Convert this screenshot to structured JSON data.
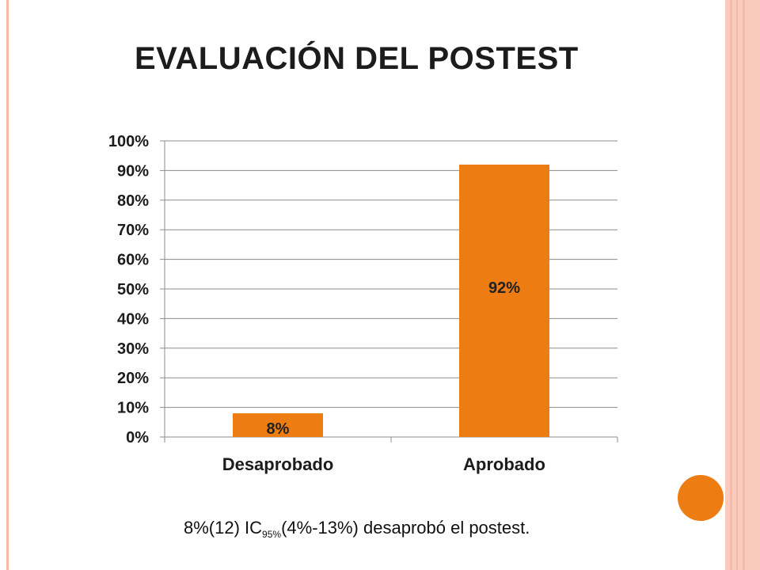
{
  "slide": {
    "title": "EVALUACIÓN DEL POSTEST",
    "caption": {
      "prefix": "8%(12) IC",
      "subscript": "95%",
      "suffix": "(4%-13%) desaprobó el postest."
    },
    "colors": {
      "accent": "#ed7d12",
      "frame": "#f9cbbd",
      "frame_stripe": "#f4b9a8"
    }
  },
  "chart_data": {
    "type": "bar",
    "title": "",
    "xlabel": "",
    "ylabel": "",
    "categories": [
      "Desaprobado",
      "Aprobado"
    ],
    "values": [
      8,
      92
    ],
    "data_labels": [
      "8%",
      "92%"
    ],
    "ylim": [
      0,
      100
    ],
    "yticks": [
      0,
      10,
      20,
      30,
      40,
      50,
      60,
      70,
      80,
      90,
      100
    ],
    "ytick_labels": [
      "0%",
      "10%",
      "20%",
      "30%",
      "40%",
      "50%",
      "60%",
      "70%",
      "80%",
      "90%",
      "100%"
    ],
    "grid": true,
    "bar_color": "#ed7d12",
    "legend": "none"
  }
}
